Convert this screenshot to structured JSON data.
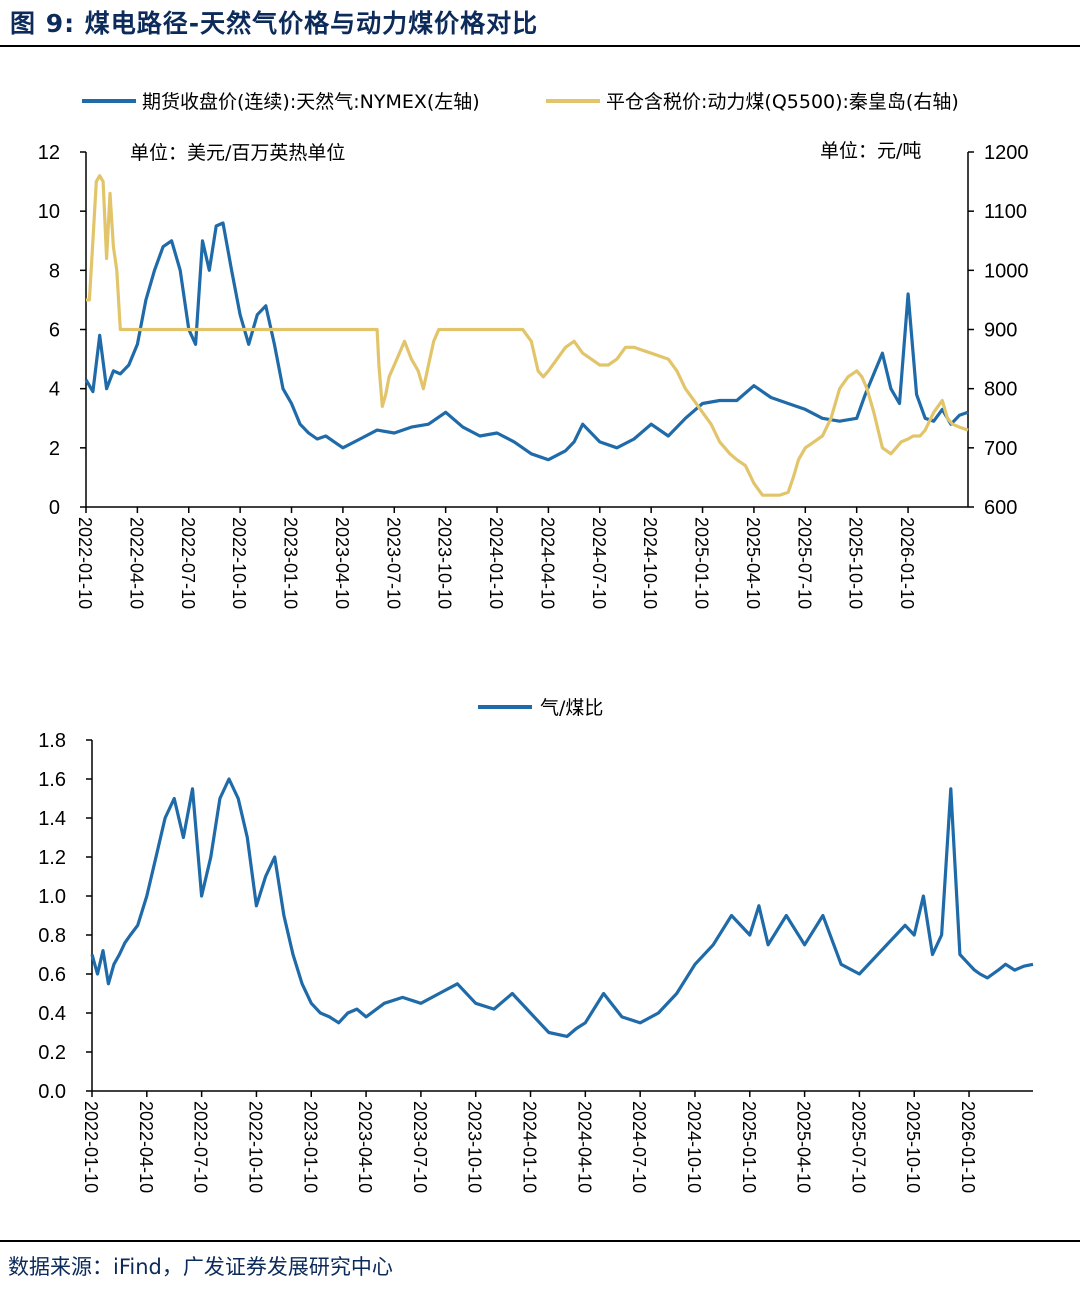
{
  "figure": {
    "title": "图 9:  煤电路径-天然气价格与动力煤价格对比",
    "source": "数据来源：iFind，广发证券发展研究中心"
  },
  "colors": {
    "gas": "#1f6aa8",
    "coal": "#e2c56b",
    "ratio": "#1f6aa8",
    "axis": "#000000"
  },
  "chart_data": [
    {
      "type": "line",
      "legend": [
        "期货收盘价(连续):天然气:NYMEX(左轴)",
        "平仓含税价:动力煤(Q5500):秦皇岛(右轴)"
      ],
      "unit_left": "单位：美元/百万英热单位",
      "unit_right": "单位：元/吨",
      "x_ticks": [
        "2022-01-10",
        "2022-04-10",
        "2022-07-10",
        "2022-10-10",
        "2023-01-10",
        "2023-04-10",
        "2023-07-10",
        "2023-10-10",
        "2024-01-10",
        "2024-04-10",
        "2024-07-10",
        "2024-10-10",
        "2025-01-10",
        "2025-04-10",
        "2025-07-10",
        "2025-10-10",
        "2026-01-10"
      ],
      "x_range_months": [
        0,
        51.5
      ],
      "y_left": {
        "ticks": [
          "0",
          "2",
          "4",
          "6",
          "8",
          "10",
          "12"
        ],
        "range": [
          0,
          12
        ]
      },
      "y_right": {
        "ticks": [
          "600",
          "700",
          "800",
          "900",
          "1000",
          "1100",
          "1200"
        ],
        "range": [
          600,
          1200
        ]
      },
      "series": [
        {
          "name": "期货收盘价(连续):天然气:NYMEX",
          "axis": "left",
          "x": [
            0,
            0.4,
            0.8,
            1.2,
            1.6,
            2.0,
            2.5,
            3.0,
            3.5,
            4.0,
            4.5,
            5.0,
            5.5,
            6.0,
            6.4,
            6.8,
            7.2,
            7.6,
            8.0,
            8.5,
            9.0,
            9.5,
            10.0,
            10.5,
            11.0,
            11.5,
            12.0,
            12.5,
            13.0,
            13.5,
            14.0,
            14.5,
            15.0,
            16.0,
            17.0,
            18.0,
            19.0,
            20.0,
            21.0,
            22.0,
            23.0,
            24.0,
            25.0,
            26.0,
            27.0,
            28.0,
            28.5,
            29.0,
            30.0,
            31.0,
            32.0,
            33.0,
            34.0,
            35.0,
            36.0,
            37.0,
            38.0,
            39.0,
            40.0,
            41.0,
            42.0,
            43.0,
            44.0,
            45.0,
            45.5,
            46.0,
            46.5,
            47.0,
            47.5,
            48.0,
            48.5,
            49.0,
            49.5,
            50.0,
            50.5,
            51.0,
            51.5
          ],
          "y": [
            4.3,
            3.9,
            5.8,
            4.0,
            4.6,
            4.5,
            4.8,
            5.5,
            7.0,
            8.0,
            8.8,
            9.0,
            8.0,
            6.0,
            5.5,
            9.0,
            8.0,
            9.5,
            9.6,
            8.0,
            6.5,
            5.5,
            6.5,
            6.8,
            5.5,
            4.0,
            3.5,
            2.8,
            2.5,
            2.3,
            2.4,
            2.2,
            2.0,
            2.3,
            2.6,
            2.5,
            2.7,
            2.8,
            3.2,
            2.7,
            2.4,
            2.5,
            2.2,
            1.8,
            1.6,
            1.9,
            2.2,
            2.8,
            2.2,
            2.0,
            2.3,
            2.8,
            2.4,
            3.0,
            3.5,
            3.6,
            3.6,
            4.1,
            3.7,
            3.5,
            3.3,
            3.0,
            2.9,
            3.0,
            3.8,
            4.5,
            5.2,
            4.0,
            3.5,
            7.2,
            3.8,
            3.0,
            2.9,
            3.3,
            2.8,
            3.1,
            3.2
          ]
        },
        {
          "name": "平仓含税价:动力煤(Q5500):秦皇岛",
          "axis": "right",
          "x": [
            0,
            0.2,
            0.4,
            0.6,
            0.8,
            1.0,
            1.2,
            1.4,
            1.6,
            1.8,
            2.0,
            2.2,
            2.4,
            2.6,
            2.8,
            3.0,
            4.0,
            8.0,
            12.0,
            16.0,
            16.8,
            17.0,
            17.1,
            17.3,
            17.5,
            17.7,
            18.0,
            18.3,
            18.6,
            19.0,
            19.4,
            19.7,
            20.0,
            20.3,
            20.6,
            21.0,
            21.5,
            22.5,
            24.0,
            25.5,
            26.0,
            26.4,
            26.7,
            27.0,
            27.5,
            28.0,
            28.5,
            29.0,
            29.5,
            30.0,
            30.5,
            31.0,
            31.5,
            32.0,
            33.0,
            34.0,
            34.5,
            35.0,
            35.5,
            36.0,
            36.5,
            37.0,
            37.3,
            37.6,
            38.0,
            38.5,
            39.0,
            39.5,
            40.0,
            40.5,
            41.0,
            41.3,
            41.6,
            42.0,
            42.5,
            43.0,
            43.5,
            44.0,
            44.5,
            45.0,
            45.3,
            45.6,
            46.0,
            46.5,
            47.0,
            47.3,
            47.6,
            48.0,
            48.3,
            48.7,
            49.0,
            49.5,
            50.0,
            50.3,
            50.6,
            51.0,
            51.5
          ],
          "y": [
            950,
            950,
            1050,
            1150,
            1160,
            1150,
            1020,
            1130,
            1040,
            1000,
            900,
            900,
            900,
            900,
            900,
            900,
            900,
            900,
            900,
            900,
            900,
            900,
            840,
            770,
            790,
            820,
            840,
            860,
            880,
            850,
            830,
            800,
            840,
            880,
            900,
            900,
            900,
            900,
            900,
            900,
            880,
            830,
            820,
            830,
            850,
            870,
            880,
            860,
            850,
            840,
            840,
            850,
            870,
            870,
            860,
            850,
            830,
            800,
            780,
            760,
            740,
            710,
            700,
            690,
            680,
            670,
            640,
            620,
            620,
            620,
            625,
            650,
            680,
            700,
            710,
            720,
            750,
            800,
            820,
            830,
            820,
            800,
            760,
            700,
            690,
            700,
            710,
            715,
            720,
            720,
            730,
            760,
            780,
            750,
            740,
            735,
            730
          ]
        }
      ]
    },
    {
      "type": "line",
      "legend": [
        "气/煤比"
      ],
      "x_ticks": [
        "2022-01-10",
        "2022-04-10",
        "2022-07-10",
        "2022-10-10",
        "2023-01-10",
        "2023-04-10",
        "2023-07-10",
        "2023-10-10",
        "2024-01-10",
        "2024-04-10",
        "2024-07-10",
        "2024-10-10",
        "2025-01-10",
        "2025-04-10",
        "2025-07-10",
        "2025-10-10",
        "2026-01-10"
      ],
      "x_range_months": [
        0,
        51.5
      ],
      "y": {
        "ticks": [
          "0.0",
          "0.2",
          "0.4",
          "0.6",
          "0.8",
          "1.0",
          "1.2",
          "1.4",
          "1.6",
          "1.8"
        ],
        "range": [
          0,
          1.8
        ]
      },
      "series": [
        {
          "name": "气/煤比",
          "x": [
            0,
            0.3,
            0.6,
            0.9,
            1.2,
            1.5,
            1.8,
            2.1,
            2.5,
            3.0,
            3.5,
            4.0,
            4.5,
            5.0,
            5.5,
            6.0,
            6.5,
            7.0,
            7.5,
            8.0,
            8.5,
            9.0,
            9.5,
            10.0,
            10.5,
            11.0,
            11.5,
            12.0,
            12.5,
            13.0,
            13.5,
            14.0,
            14.5,
            15.0,
            16.0,
            17.0,
            18.0,
            19.0,
            20.0,
            21.0,
            22.0,
            23.0,
            24.0,
            25.0,
            26.0,
            26.5,
            27.0,
            28.0,
            29.0,
            30.0,
            31.0,
            32.0,
            33.0,
            34.0,
            35.0,
            36.0,
            36.5,
            37.0,
            38.0,
            39.0,
            40.0,
            41.0,
            42.0,
            43.0,
            44.0,
            44.5,
            45.0,
            45.5,
            46.0,
            46.5,
            47.0,
            47.5,
            48.0,
            48.3,
            48.6,
            49.0,
            49.3,
            49.6,
            50.0,
            50.5,
            51.0,
            51.5
          ],
          "y": [
            0.7,
            0.6,
            0.72,
            0.55,
            0.65,
            0.7,
            0.76,
            0.8,
            0.85,
            1.0,
            1.2,
            1.4,
            1.5,
            1.3,
            1.55,
            1.0,
            1.2,
            1.5,
            1.6,
            1.5,
            1.3,
            0.95,
            1.1,
            1.2,
            0.9,
            0.7,
            0.55,
            0.45,
            0.4,
            0.38,
            0.35,
            0.4,
            0.42,
            0.38,
            0.45,
            0.48,
            0.45,
            0.5,
            0.55,
            0.45,
            0.42,
            0.5,
            0.4,
            0.3,
            0.28,
            0.32,
            0.35,
            0.5,
            0.38,
            0.35,
            0.4,
            0.5,
            0.65,
            0.75,
            0.9,
            0.8,
            0.95,
            0.75,
            0.9,
            0.75,
            0.9,
            0.65,
            0.6,
            0.7,
            0.8,
            0.85,
            0.8,
            1.0,
            0.7,
            0.8,
            1.55,
            0.7,
            0.65,
            0.62,
            0.6,
            0.58,
            0.6,
            0.62,
            0.65,
            0.62,
            0.64,
            0.65
          ]
        }
      ]
    }
  ]
}
